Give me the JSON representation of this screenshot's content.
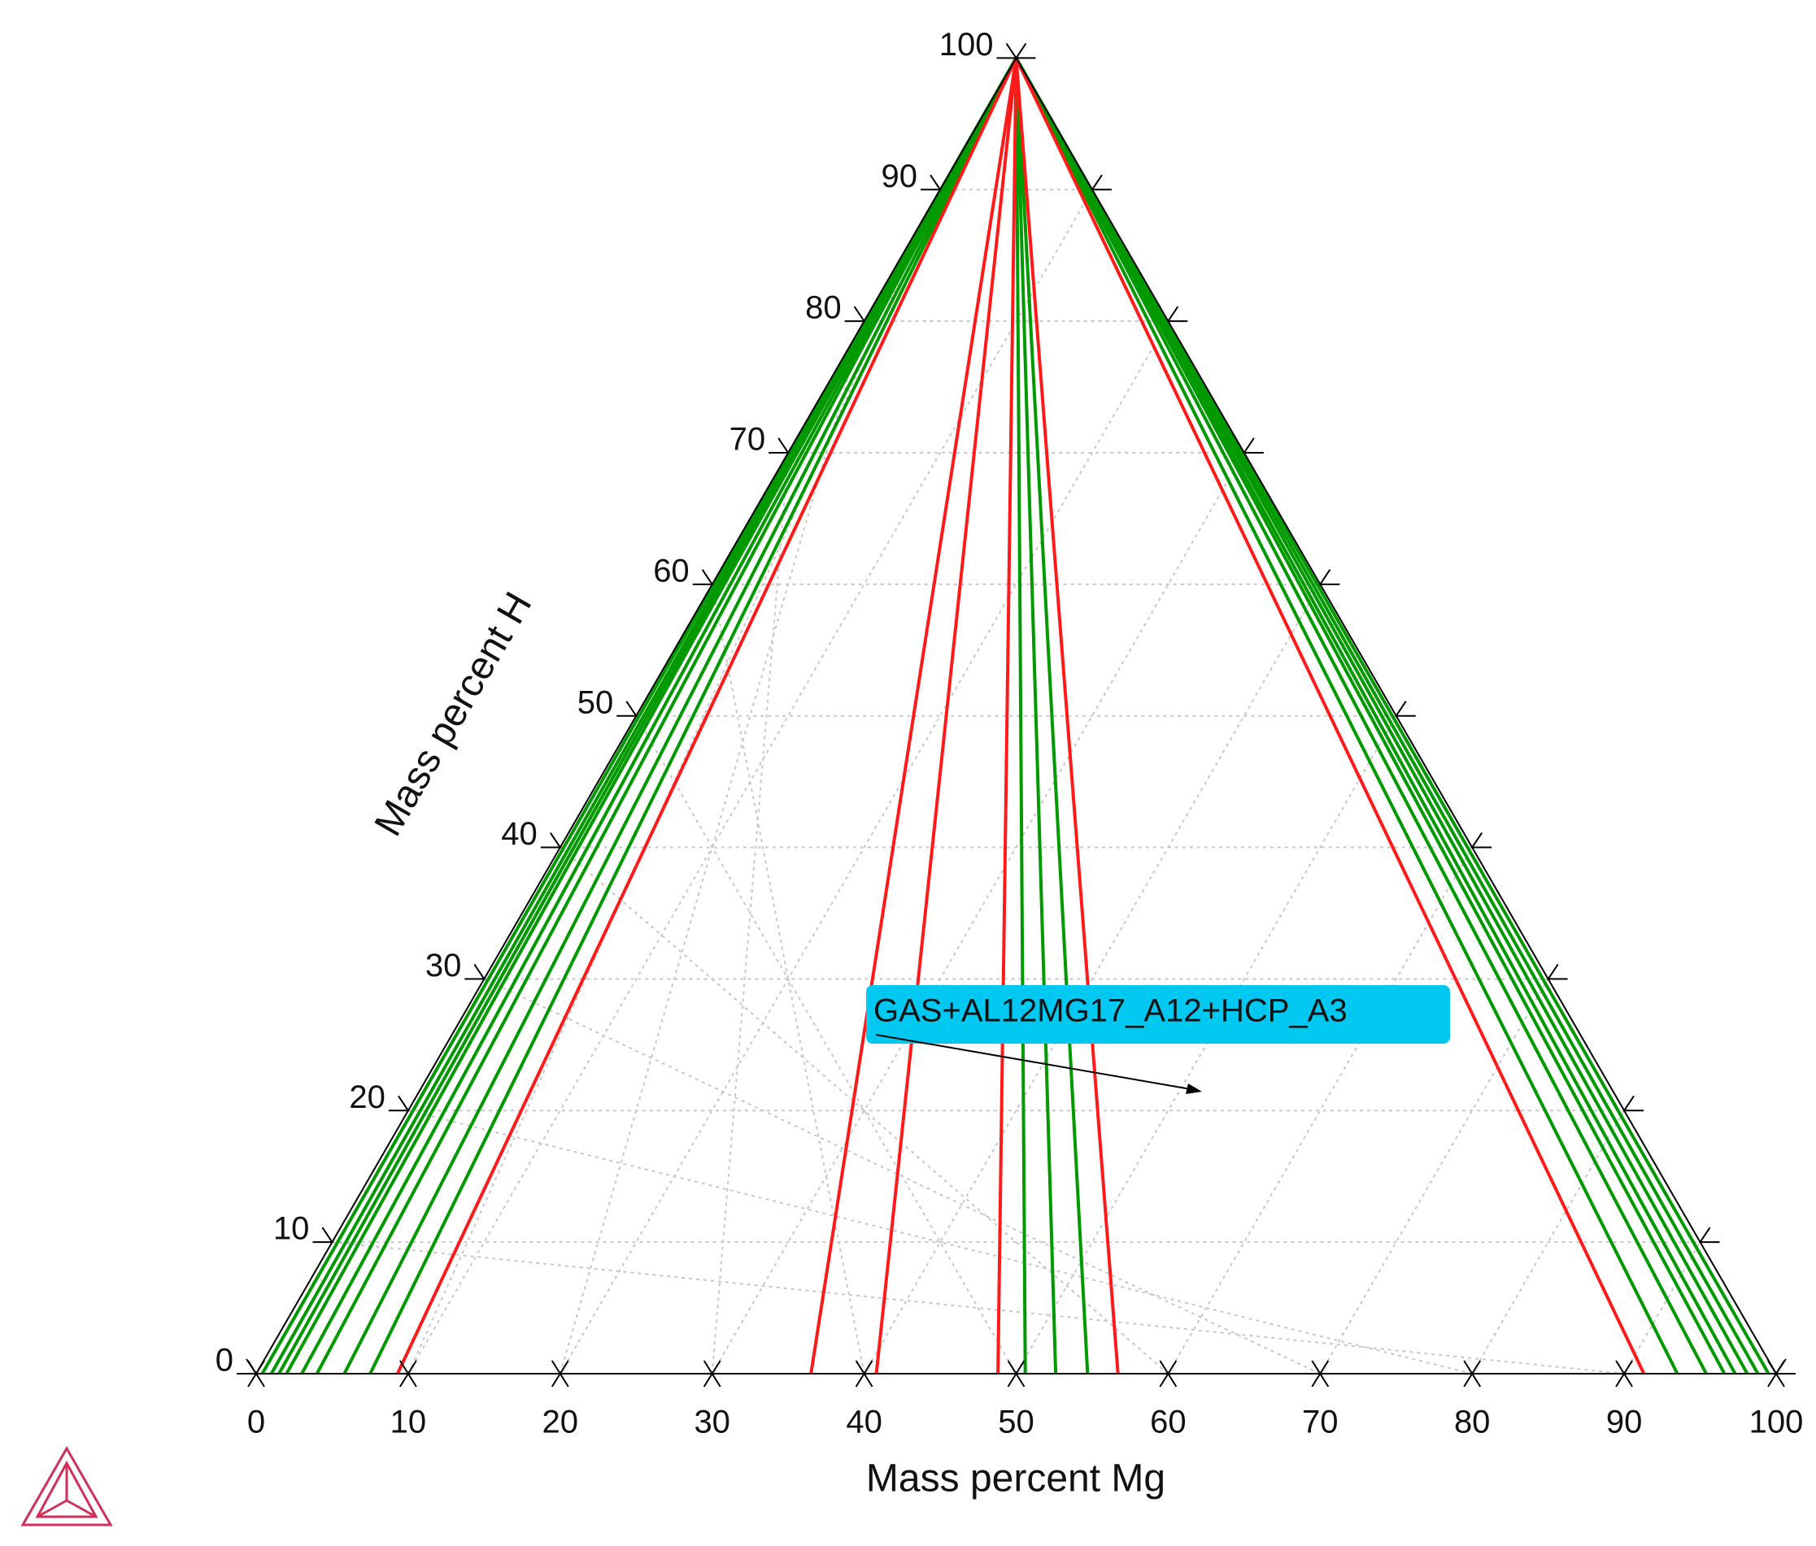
{
  "chart_data": {
    "type": "ternary",
    "xlabel": "Mass percent Mg",
    "ylabel": "Mass percent H",
    "xlim": [
      0,
      100
    ],
    "ylim": [
      0,
      100
    ],
    "xticks": [
      0,
      10,
      20,
      30,
      40,
      50,
      60,
      70,
      80,
      90,
      100
    ],
    "yticks": [
      0,
      10,
      20,
      30,
      40,
      50,
      60,
      70,
      80,
      90,
      100
    ],
    "grid": true,
    "series": [
      {
        "color": "#009900",
        "values": [
          0.4,
          1,
          1.5,
          2,
          3,
          4,
          5.8,
          7.5,
          50.6,
          52.6,
          54.7,
          93.5,
          95.4,
          96.6,
          97.3,
          98.1,
          98.8,
          99.5
        ]
      },
      {
        "color": "#ff1a1a",
        "values": [
          9.3,
          36.5,
          40.8,
          48.8,
          56.7,
          91.3
        ]
      }
    ],
    "annotation": "GAS+AL12MG17_A12+HCP_A3"
  }
}
